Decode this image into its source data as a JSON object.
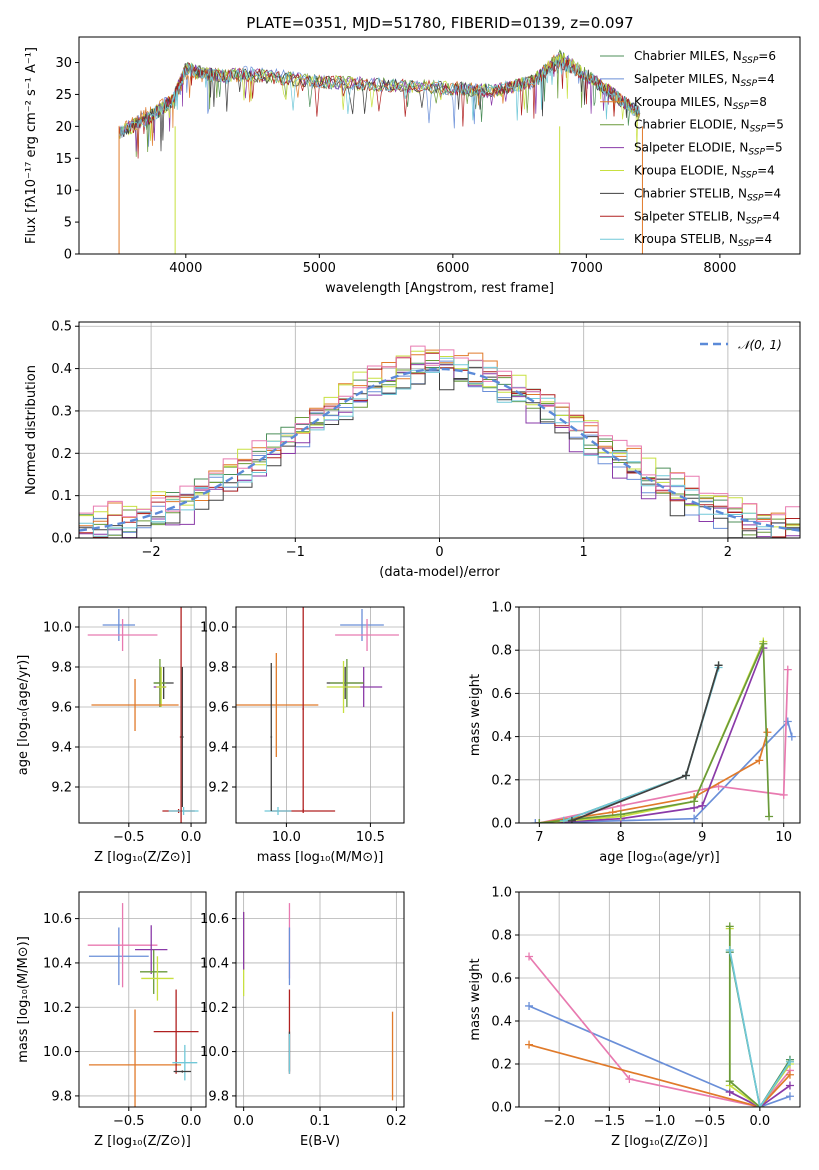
{
  "chart_data": [
    {
      "type": "line",
      "title": "PLATE=0351, MJD=51780, FIBERID=0139, z=0.097",
      "xlabel": "wavelength [Angstrom, rest frame]",
      "ylabel": "Flux [fλ10⁻¹⁷ erg cm⁻² s⁻¹ A⁻¹]",
      "xlim": [
        3200,
        8600
      ],
      "ylim": [
        0,
        34
      ],
      "xticks": [
        "4000",
        "5000",
        "6000",
        "7000",
        "8000"
      ],
      "yticks": [
        "0",
        "5",
        "10",
        "15",
        "20",
        "25",
        "30"
      ],
      "legend_position": "right",
      "x": [
        3500,
        3700,
        3900,
        4000,
        4200,
        4500,
        5000,
        5500,
        6000,
        6300,
        6600,
        6800,
        7000,
        7200,
        7400
      ],
      "series": [
        {
          "name": "Chabrier MILES, N_SSP=6",
          "color": "#4c8f5a",
          "values": [
            19,
            21,
            24,
            29,
            28,
            28,
            27,
            26.5,
            26,
            25.5,
            27,
            31,
            28,
            25,
            22
          ]
        },
        {
          "name": "Salpeter MILES, N_SSP=4",
          "color": "#6a8fd8",
          "values": [
            19,
            22,
            24,
            29,
            28,
            28.5,
            27,
            26.5,
            26,
            25.5,
            27,
            31,
            28,
            25,
            22
          ]
        },
        {
          "name": "Kroupa MILES, N_SSP=8",
          "color": "#e07a2a",
          "values": [
            19,
            22,
            24,
            28,
            28,
            28,
            27,
            26.5,
            26,
            25.5,
            27,
            31,
            28,
            25,
            22
          ]
        },
        {
          "name": "Chabrier ELODIE, N_SSP=5",
          "color": "#6a9a3a",
          "values": [
            19,
            21,
            24,
            29,
            28,
            28,
            27,
            26.5,
            26,
            25.5,
            27,
            31,
            28,
            25,
            22
          ]
        },
        {
          "name": "Salpeter ELODIE, N_SSP=5",
          "color": "#8a3aa8",
          "values": [
            19,
            21,
            24,
            29,
            28,
            28,
            27,
            26.5,
            26,
            25.5,
            27,
            31,
            28,
            25,
            22
          ]
        },
        {
          "name": "Kroupa ELODIE, N_SSP=4",
          "color": "#c8e040",
          "values": [
            19,
            21,
            24,
            29,
            28,
            28,
            27,
            26.5,
            26,
            25.5,
            27,
            31,
            28,
            25,
            22
          ]
        },
        {
          "name": "Chabrier STELIB, N_SSP=4",
          "color": "#404040",
          "values": [
            19,
            21,
            24,
            29,
            28,
            28,
            27,
            26.5,
            26,
            25.5,
            27,
            30,
            28,
            25,
            22
          ]
        },
        {
          "name": "Salpeter STELIB, N_SSP=4",
          "color": "#b02020",
          "values": [
            19,
            21,
            24,
            29,
            28,
            28,
            27,
            26.5,
            26,
            25.5,
            27,
            30,
            28,
            25,
            22
          ]
        },
        {
          "name": "Kroupa STELIB, N_SSP=4",
          "color": "#70c8d8",
          "values": [
            19,
            21,
            24,
            29,
            28,
            28,
            27,
            26.5,
            26,
            25.5,
            27,
            30,
            28,
            25,
            22
          ]
        }
      ]
    },
    {
      "type": "line",
      "title": "",
      "xlabel": "(data-model)/error",
      "ylabel": "Normed distribution",
      "xlim": [
        -2.5,
        2.5
      ],
      "ylim": [
        0,
        0.51
      ],
      "xticks": [
        "−2",
        "−1",
        "0",
        "1",
        "2"
      ],
      "yticks": [
        "0.0",
        "0.1",
        "0.2",
        "0.3",
        "0.4",
        "0.5"
      ],
      "grid": true,
      "legend_position": "top-right",
      "legend": "𝒩(0, 1)",
      "reference_curve": {
        "mean": 0,
        "sigma": 1,
        "color": "#5b8ad8",
        "style": "dashed"
      },
      "bins": [
        -2.5,
        2.5,
        50
      ],
      "histograms": [
        {
          "color": "#4c8f5a",
          "offset": 0.01
        },
        {
          "color": "#6a8fd8",
          "offset": -0.01
        },
        {
          "color": "#e07a2a",
          "offset": 0.02
        },
        {
          "color": "#6a9a3a",
          "offset": 0.0
        },
        {
          "color": "#8a3aa8",
          "offset": -0.02
        },
        {
          "color": "#c8e040",
          "offset": 0.015
        },
        {
          "color": "#404040",
          "offset": -0.015
        },
        {
          "color": "#b02020",
          "offset": 0.005
        },
        {
          "color": "#70c8d8",
          "offset": -0.005
        },
        {
          "color": "#e87ab0",
          "offset": 0.025
        }
      ]
    },
    {
      "type": "scatter",
      "xlabel": "Z [log₁₀(Z/Z⊙)]",
      "ylabel": "age  [log₁₀(age/yr)]",
      "xlim": [
        -0.9,
        0.12
      ],
      "ylim": [
        9.02,
        10.1
      ],
      "xticks": [
        "−0.5",
        "0.0"
      ],
      "yticks": [
        "9.2",
        "9.4",
        "9.6",
        "9.8",
        "10.0"
      ],
      "grid": true,
      "points": [
        {
          "x": -0.58,
          "y": 10.01,
          "xerr": 0.13,
          "yerr": 0.08,
          "color": "#6a8fd8"
        },
        {
          "x": -0.55,
          "y": 9.96,
          "xerr": 0.28,
          "yerr": 0.08,
          "color": "#e87ab0"
        },
        {
          "x": -0.25,
          "y": 9.7,
          "xerr": 0.05,
          "yerr": 0.1,
          "color": "#8a3aa8"
        },
        {
          "x": -0.22,
          "y": 9.72,
          "xerr": 0.08,
          "yerr": 0.08,
          "color": "#404040"
        },
        {
          "x": -0.25,
          "y": 9.72,
          "xerr": 0.05,
          "yerr": 0.12,
          "color": "#6a9a3a"
        },
        {
          "x": -0.24,
          "y": 9.7,
          "xerr": 0.04,
          "yerr": 0.1,
          "color": "#c8e040"
        },
        {
          "x": -0.45,
          "y": 9.61,
          "xerr": 0.35,
          "yerr": 0.13,
          "color": "#e07a2a"
        },
        {
          "x": -0.1,
          "y": 9.08,
          "xerr": 0.13,
          "yerr": 0.01,
          "color": "#b02020"
        },
        {
          "x": -0.06,
          "y": 9.08,
          "xerr": 0.12,
          "yerr": 0.02,
          "color": "#70c8d8"
        },
        {
          "x": -0.08,
          "y": 9.45,
          "xerr": 0.01,
          "yerr": 0.65,
          "color": "#b02020"
        },
        {
          "x": -0.07,
          "y": 9.45,
          "xerr": 0.01,
          "yerr": 0.35,
          "color": "#404040"
        }
      ]
    },
    {
      "type": "scatter",
      "xlabel": "mass [log₁₀(M/M⊙)]",
      "ylabel": "",
      "xlim": [
        9.7,
        10.7
      ],
      "ylim": [
        9.02,
        10.1
      ],
      "xticks": [
        "10.0",
        "10.5"
      ],
      "yticks": [
        "9.2",
        "9.4",
        "9.6",
        "9.8",
        "10.0"
      ],
      "grid": true,
      "points": [
        {
          "x": 10.45,
          "y": 10.01,
          "xerr": 0.13,
          "yerr": 0.08,
          "color": "#6a8fd8"
        },
        {
          "x": 10.48,
          "y": 9.96,
          "xerr": 0.19,
          "yerr": 0.08,
          "color": "#e87ab0"
        },
        {
          "x": 10.46,
          "y": 9.7,
          "xerr": 0.11,
          "yerr": 0.1,
          "color": "#8a3aa8"
        },
        {
          "x": 10.35,
          "y": 9.72,
          "xerr": 0.11,
          "yerr": 0.08,
          "color": "#404040"
        },
        {
          "x": 10.36,
          "y": 9.72,
          "xerr": 0.1,
          "yerr": 0.12,
          "color": "#6a9a3a"
        },
        {
          "x": 10.34,
          "y": 9.7,
          "xerr": 0.1,
          "yerr": 0.13,
          "color": "#c8e040"
        },
        {
          "x": 9.94,
          "y": 9.61,
          "xerr": 0.25,
          "yerr": 0.26,
          "color": "#e07a2a"
        },
        {
          "x": 10.1,
          "y": 9.08,
          "xerr": 0.19,
          "yerr": 0.01,
          "color": "#b02020"
        },
        {
          "x": 9.95,
          "y": 9.08,
          "xerr": 0.08,
          "yerr": 0.02,
          "color": "#70c8d8"
        },
        {
          "x": 10.1,
          "y": 9.59,
          "xerr": 0.005,
          "yerr": 0.51,
          "color": "#b02020"
        },
        {
          "x": 9.91,
          "y": 9.45,
          "xerr": 0.005,
          "yerr": 0.37,
          "color": "#404040"
        }
      ]
    },
    {
      "type": "line",
      "xlabel": "age  [log₁₀(age/yr)]",
      "ylabel": "mass weight",
      "xlim": [
        6.75,
        10.2
      ],
      "ylim": [
        0,
        1.0
      ],
      "xticks": [
        "7",
        "8",
        "9",
        "10"
      ],
      "yticks": [
        "0.0",
        "0.2",
        "0.4",
        "0.6",
        "0.8",
        "1.0"
      ],
      "grid": true,
      "series": [
        {
          "color": "#6a8fd8",
          "x": [
            6.95,
            8.9,
            10.05,
            10.1
          ],
          "values": [
            0.0,
            0.02,
            0.47,
            0.4
          ]
        },
        {
          "color": "#e87ab0",
          "x": [
            7.0,
            8.0,
            9.2,
            10.0,
            10.05
          ],
          "values": [
            0.0,
            0.08,
            0.17,
            0.13,
            0.71
          ]
        },
        {
          "color": "#e07a2a",
          "x": [
            7.0,
            7.9,
            8.9,
            9.7,
            9.8
          ],
          "values": [
            0.0,
            0.05,
            0.12,
            0.29,
            0.42
          ]
        },
        {
          "color": "#8a3aa8",
          "x": [
            7.0,
            8.0,
            8.9,
            9.0,
            9.75
          ],
          "values": [
            0.0,
            0.02,
            0.07,
            0.08,
            0.81
          ]
        },
        {
          "color": "#c8e040",
          "x": [
            7.0,
            8.0,
            8.9,
            9.75
          ],
          "values": [
            0.0,
            0.03,
            0.1,
            0.84
          ]
        },
        {
          "color": "#6a9a3a",
          "x": [
            7.0,
            8.0,
            8.9,
            9.75,
            9.82
          ],
          "values": [
            0.0,
            0.04,
            0.1,
            0.83,
            0.03
          ]
        },
        {
          "color": "#4c8f5a",
          "x": [
            7.3,
            8.8,
            9.2
          ],
          "values": [
            0.01,
            0.22,
            0.73
          ]
        },
        {
          "color": "#70c8d8",
          "x": [
            7.3,
            8.8,
            9.2
          ],
          "values": [
            0.01,
            0.22,
            0.72
          ]
        },
        {
          "color": "#404040",
          "x": [
            7.4,
            8.8,
            9.2
          ],
          "values": [
            0.01,
            0.22,
            0.73
          ]
        }
      ]
    },
    {
      "type": "scatter",
      "xlabel": "Z [log₁₀(Z/Z⊙)]",
      "ylabel": "mass [log₁₀(M/M⊙)]",
      "xlim": [
        -0.9,
        0.12
      ],
      "ylim": [
        9.75,
        10.72
      ],
      "xticks": [
        "−0.5",
        "0.0"
      ],
      "yticks": [
        "9.8",
        "10.0",
        "10.2",
        "10.4",
        "10.6"
      ],
      "grid": true,
      "points": [
        {
          "x": -0.58,
          "y": 10.43,
          "xerr": 0.24,
          "yerr": 0.13,
          "color": "#6a8fd8"
        },
        {
          "x": -0.55,
          "y": 10.48,
          "xerr": 0.28,
          "yerr": 0.19,
          "color": "#e87ab0"
        },
        {
          "x": -0.32,
          "y": 10.46,
          "xerr": 0.13,
          "yerr": 0.11,
          "color": "#8a3aa8"
        },
        {
          "x": -0.3,
          "y": 10.36,
          "xerr": 0.11,
          "yerr": 0.1,
          "color": "#6a9a3a"
        },
        {
          "x": -0.27,
          "y": 10.33,
          "xerr": 0.13,
          "yerr": 0.1,
          "color": "#c8e040"
        },
        {
          "x": -0.45,
          "y": 9.94,
          "xerr": 0.37,
          "yerr": 0.25,
          "color": "#e07a2a"
        },
        {
          "x": -0.12,
          "y": 10.09,
          "xerr": 0.18,
          "yerr": 0.19,
          "color": "#b02020"
        },
        {
          "x": -0.05,
          "y": 9.95,
          "xerr": 0.1,
          "yerr": 0.08,
          "color": "#70c8d8"
        },
        {
          "x": -0.07,
          "y": 9.91,
          "xerr": 0.07,
          "yerr": 0.005,
          "color": "#404040"
        }
      ]
    },
    {
      "type": "scatter",
      "xlabel": "E(B-V)",
      "ylabel": "",
      "xlim": [
        -0.01,
        0.21
      ],
      "ylim": [
        9.75,
        10.72
      ],
      "xticks": [
        "0.0",
        "0.1",
        "0.2"
      ],
      "yticks": [
        "9.8",
        "10.0",
        "10.2",
        "10.4",
        "10.6"
      ],
      "grid": true,
      "points": [
        {
          "x": 0.0,
          "y": 10.44,
          "yerr": 0.19,
          "color": "#c8e040"
        },
        {
          "x": 0.0,
          "y": 10.5,
          "yerr": 0.13,
          "color": "#8a3aa8"
        },
        {
          "x": 0.06,
          "y": 10.5,
          "yerr": 0.17,
          "color": "#e87ab0"
        },
        {
          "x": 0.06,
          "y": 10.43,
          "yerr": 0.13,
          "color": "#6a8fd8"
        },
        {
          "x": 0.06,
          "y": 10.09,
          "yerr": 0.19,
          "color": "#b02020"
        },
        {
          "x": 0.06,
          "y": 10.0,
          "yerr": 0.09,
          "color": "#404040"
        },
        {
          "x": 0.06,
          "y": 9.99,
          "yerr": 0.09,
          "color": "#70c8d8"
        },
        {
          "x": 0.195,
          "y": 9.98,
          "yerr": 0.2,
          "color": "#e07a2a"
        }
      ]
    },
    {
      "type": "line",
      "xlabel": "Z [log₁₀(Z/Z⊙)]",
      "ylabel": "mass weight",
      "xlim": [
        -2.4,
        0.4
      ],
      "ylim": [
        0,
        1.0
      ],
      "xticks": [
        "−2.0",
        "−1.5",
        "−1.0",
        "−0.5",
        "0.0"
      ],
      "yticks": [
        "0.0",
        "0.2",
        "0.4",
        "0.6",
        "0.8",
        "1.0"
      ],
      "grid": true,
      "series": [
        {
          "color": "#6a8fd8",
          "x": [
            -2.3,
            -0.3,
            0.0,
            0.3
          ],
          "values": [
            0.47,
            0.07,
            0.0,
            0.05
          ]
        },
        {
          "color": "#e87ab0",
          "x": [
            -2.3,
            -1.3,
            0.0,
            0.3
          ],
          "values": [
            0.7,
            0.13,
            0.0,
            0.17
          ]
        },
        {
          "color": "#e07a2a",
          "x": [
            -2.3,
            0.0,
            0.3
          ],
          "values": [
            0.29,
            0.0,
            0.15
          ]
        },
        {
          "color": "#8a3aa8",
          "x": [
            -0.3,
            0.0,
            0.3
          ],
          "values": [
            0.07,
            0.0,
            0.1
          ]
        },
        {
          "color": "#c8e040",
          "x": [
            -0.3,
            -0.3,
            0.0,
            0.3
          ],
          "values": [
            0.83,
            0.1,
            0.0,
            0.2
          ]
        },
        {
          "color": "#6a9a3a",
          "x": [
            -0.3,
            -0.3,
            0.0,
            0.3
          ],
          "values": [
            0.84,
            0.12,
            0.0,
            0.21
          ]
        },
        {
          "color": "#4c8f5a",
          "x": [
            -0.3,
            0.0,
            0.3
          ],
          "values": [
            0.72,
            0.0,
            0.22
          ]
        },
        {
          "color": "#70c8d8",
          "x": [
            -0.3,
            0.0,
            0.3
          ],
          "values": [
            0.73,
            0.0,
            0.21
          ]
        }
      ]
    }
  ]
}
